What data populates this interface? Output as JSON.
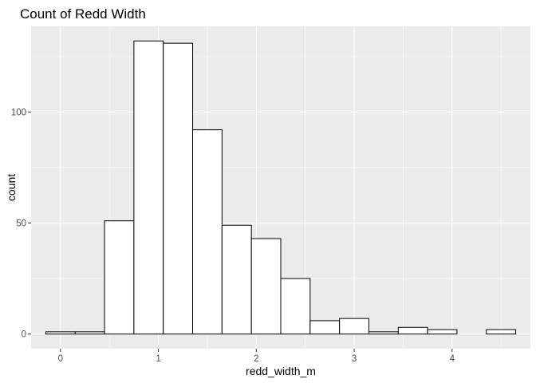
{
  "chart_data": {
    "type": "bar",
    "title": "Count of Redd Width",
    "xlabel": "redd_width_m",
    "ylabel": "count",
    "bin_width": 0.3,
    "bins": [
      {
        "x": 0.0,
        "count": 1
      },
      {
        "x": 0.3,
        "count": 1
      },
      {
        "x": 0.6,
        "count": 51
      },
      {
        "x": 0.9,
        "count": 132
      },
      {
        "x": 1.2,
        "count": 131
      },
      {
        "x": 1.5,
        "count": 92
      },
      {
        "x": 1.8,
        "count": 49
      },
      {
        "x": 2.1,
        "count": 43
      },
      {
        "x": 2.4,
        "count": 25
      },
      {
        "x": 2.7,
        "count": 6
      },
      {
        "x": 3.0,
        "count": 7
      },
      {
        "x": 3.3,
        "count": 1
      },
      {
        "x": 3.6,
        "count": 3
      },
      {
        "x": 3.9,
        "count": 2
      },
      {
        "x": 4.2,
        "count": 0
      },
      {
        "x": 4.5,
        "count": 2
      }
    ],
    "x_ticks": [
      0,
      1,
      2,
      3,
      4
    ],
    "y_ticks": [
      0,
      50,
      100
    ],
    "xlim": [
      -0.3,
      4.8
    ],
    "ylim": [
      -6.6,
      138.6
    ],
    "grid": true,
    "colors": {
      "panel_background": "#ebebeb",
      "grid_major": "#ffffff",
      "bar_fill": "#ffffff",
      "bar_outline": "#000000"
    }
  }
}
